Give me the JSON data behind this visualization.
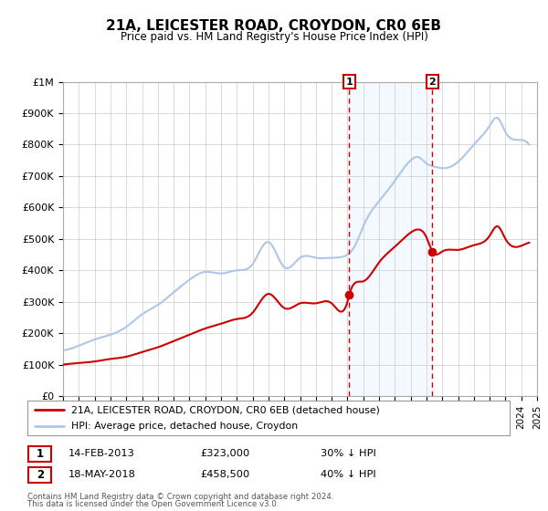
{
  "title1": "21A, LEICESTER ROAD, CROYDON, CR0 6EB",
  "title2": "Price paid vs. HM Land Registry's House Price Index (HPI)",
  "xlim": [
    1995,
    2025
  ],
  "ylim": [
    0,
    1000000
  ],
  "yticks": [
    0,
    100000,
    200000,
    300000,
    400000,
    500000,
    600000,
    700000,
    800000,
    900000,
    1000000
  ],
  "ytick_labels": [
    "£0",
    "£100K",
    "£200K",
    "£300K",
    "£400K",
    "£500K",
    "£600K",
    "£700K",
    "£800K",
    "£900K",
    "£1M"
  ],
  "xticks": [
    1995,
    1996,
    1997,
    1998,
    1999,
    2000,
    2001,
    2002,
    2003,
    2004,
    2005,
    2006,
    2007,
    2008,
    2009,
    2010,
    2011,
    2012,
    2013,
    2014,
    2015,
    2016,
    2017,
    2018,
    2019,
    2020,
    2021,
    2022,
    2023,
    2024,
    2025
  ],
  "hpi_color": "#aec6e8",
  "price_color": "#cc0000",
  "shade_color": "#ddeeff",
  "grid_color": "#cccccc",
  "marker1_x": 2013.12,
  "marker1_y": 323000,
  "marker2_x": 2018.38,
  "marker2_y": 458500,
  "vline1_x": 2013.12,
  "vline2_x": 2018.38,
  "legend_label1": "21A, LEICESTER ROAD, CROYDON, CR0 6EB (detached house)",
  "legend_label2": "HPI: Average price, detached house, Croydon",
  "annot1_date": "14-FEB-2013",
  "annot1_price": "£323,000",
  "annot1_hpi": "30% ↓ HPI",
  "annot2_date": "18-MAY-2018",
  "annot2_price": "£458,500",
  "annot2_hpi": "40% ↓ HPI",
  "footer1": "Contains HM Land Registry data © Crown copyright and database right 2024.",
  "footer2": "This data is licensed under the Open Government Licence v3.0.",
  "hpi_keypoints": [
    [
      1995,
      145000
    ],
    [
      1996,
      160000
    ],
    [
      1997,
      180000
    ],
    [
      1998,
      195000
    ],
    [
      1999,
      220000
    ],
    [
      2000,
      260000
    ],
    [
      2001,
      290000
    ],
    [
      2002,
      330000
    ],
    [
      2003,
      370000
    ],
    [
      2004,
      395000
    ],
    [
      2005,
      390000
    ],
    [
      2006,
      400000
    ],
    [
      2007,
      420000
    ],
    [
      2008,
      490000
    ],
    [
      2009,
      410000
    ],
    [
      2010,
      440000
    ],
    [
      2011,
      440000
    ],
    [
      2012,
      440000
    ],
    [
      2013,
      450000
    ],
    [
      2013.5,
      480000
    ],
    [
      2014,
      540000
    ],
    [
      2015,
      620000
    ],
    [
      2016,
      685000
    ],
    [
      2017,
      750000
    ],
    [
      2017.5,
      760000
    ],
    [
      2018,
      740000
    ],
    [
      2018.5,
      730000
    ],
    [
      2019,
      725000
    ],
    [
      2020,
      745000
    ],
    [
      2021,
      800000
    ],
    [
      2022,
      860000
    ],
    [
      2022.5,
      885000
    ],
    [
      2023,
      840000
    ],
    [
      2024,
      815000
    ],
    [
      2024.5,
      800000
    ]
  ],
  "price_keypoints": [
    [
      1995,
      100000
    ],
    [
      1996,
      105000
    ],
    [
      1997,
      110000
    ],
    [
      1998,
      118000
    ],
    [
      1999,
      125000
    ],
    [
      2000,
      140000
    ],
    [
      2001,
      155000
    ],
    [
      2002,
      175000
    ],
    [
      2003,
      195000
    ],
    [
      2004,
      215000
    ],
    [
      2005,
      230000
    ],
    [
      2006,
      245000
    ],
    [
      2007,
      265000
    ],
    [
      2008,
      325000
    ],
    [
      2009,
      280000
    ],
    [
      2010,
      295000
    ],
    [
      2011,
      295000
    ],
    [
      2012,
      295000
    ],
    [
      2013,
      300000
    ],
    [
      2013.12,
      323000
    ],
    [
      2014,
      365000
    ],
    [
      2015,
      425000
    ],
    [
      2016,
      475000
    ],
    [
      2017,
      520000
    ],
    [
      2017.5,
      530000
    ],
    [
      2018,
      505000
    ],
    [
      2018.38,
      458500
    ],
    [
      2019,
      460000
    ],
    [
      2020,
      465000
    ],
    [
      2021,
      480000
    ],
    [
      2022,
      510000
    ],
    [
      2022.5,
      540000
    ],
    [
      2023,
      500000
    ],
    [
      2024,
      478000
    ],
    [
      2024.5,
      488000
    ]
  ]
}
